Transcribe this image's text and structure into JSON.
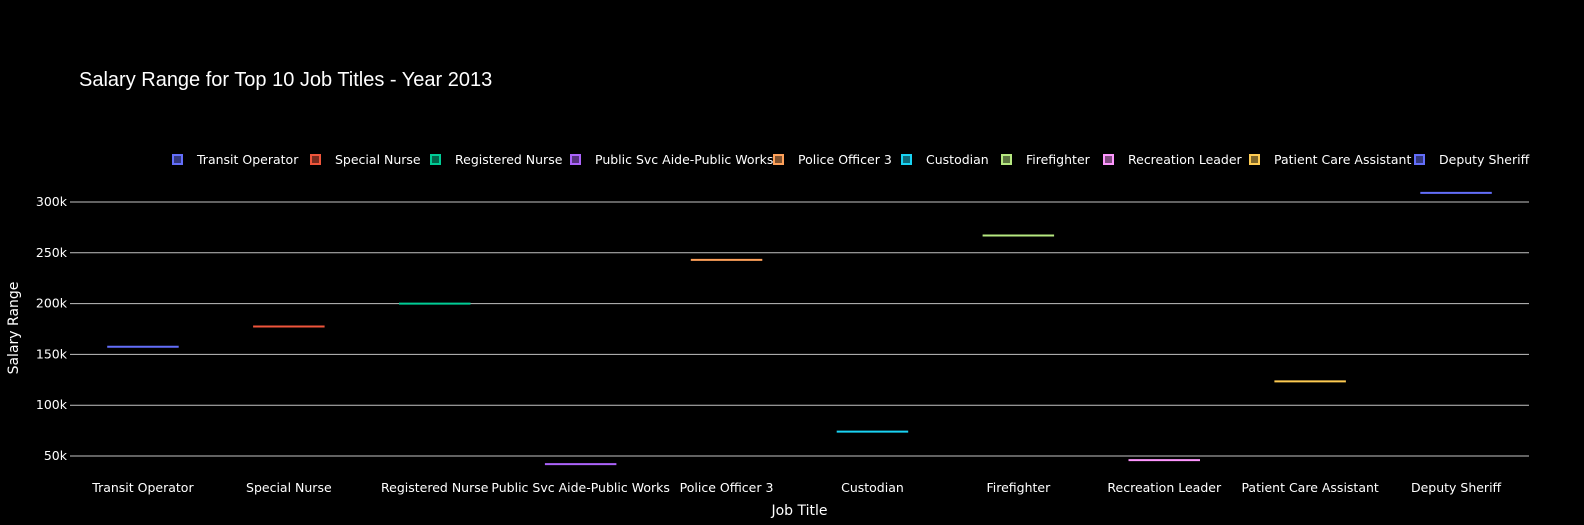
{
  "chart_data": {
    "type": "box",
    "title": "Salary Range for Top 10 Job Titles - Year 2013",
    "xlabel": "Job Title",
    "ylabel": "Salary Range",
    "categories": [
      "Transit Operator",
      "Special Nurse",
      "Registered Nurse",
      "Public Svc Aide-Public Works",
      "Police Officer 3",
      "Custodian",
      "Firefighter",
      "Recreation Leader",
      "Patient Care Assistant",
      "Deputy Sheriff"
    ],
    "series": [
      {
        "name": "Transit Operator",
        "value": 157500,
        "color": "#636efa"
      },
      {
        "name": "Special Nurse",
        "value": 177500,
        "color": "#ef553b"
      },
      {
        "name": "Registered Nurse",
        "value": 200000,
        "color": "#00cc96"
      },
      {
        "name": "Public Svc Aide-Public Works",
        "value": 42000,
        "color": "#ab63fa"
      },
      {
        "name": "Police Officer 3",
        "value": 243000,
        "color": "#ffa15a"
      },
      {
        "name": "Custodian",
        "value": 74000,
        "color": "#19d3f3"
      },
      {
        "name": "Firefighter",
        "value": 267000,
        "color": "#b6e880"
      },
      {
        "name": "Recreation Leader",
        "value": 46000,
        "color": "#ff97ff"
      },
      {
        "name": "Patient Care Assistant",
        "value": 123500,
        "color": "#fecb52"
      },
      {
        "name": "Deputy Sheriff",
        "value": 309000,
        "color": "#636efa"
      }
    ],
    "yticks": [
      50000,
      100000,
      150000,
      200000,
      250000,
      300000
    ],
    "ytick_labels": [
      "50k",
      "100k",
      "150k",
      "200k",
      "250k",
      "300k"
    ],
    "grid": true,
    "legend_position": "top"
  }
}
